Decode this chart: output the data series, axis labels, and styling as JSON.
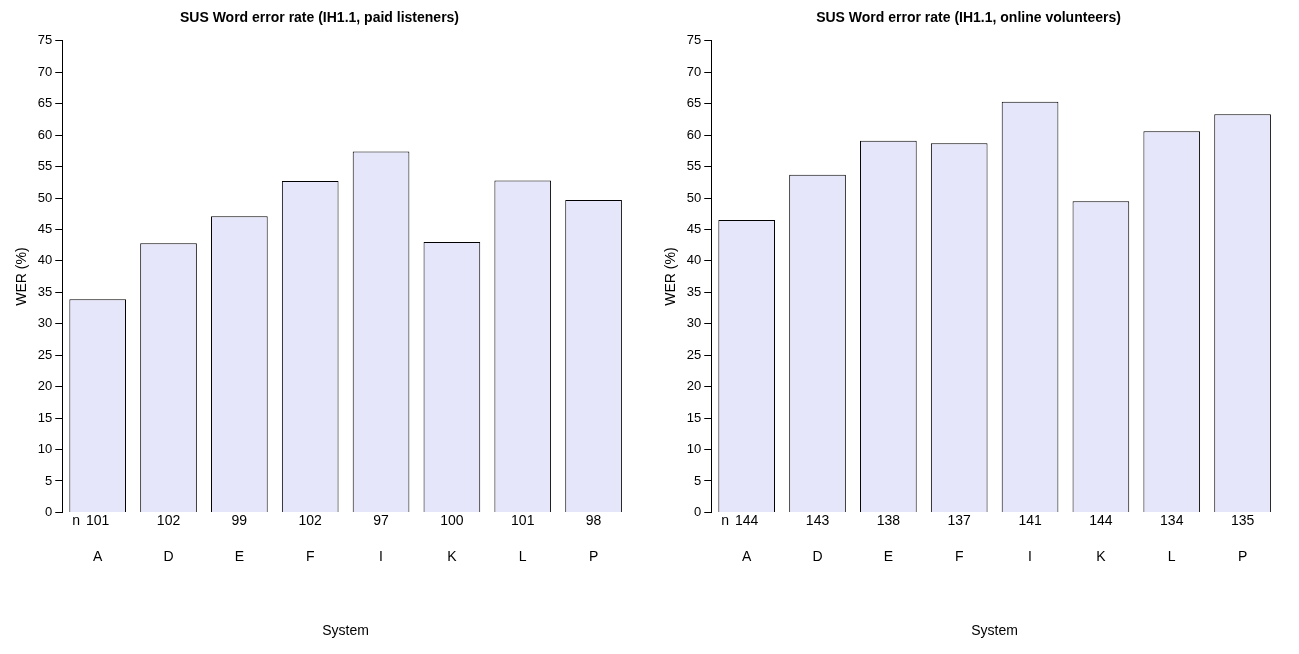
{
  "chart_data": [
    {
      "type": "bar",
      "title": "SUS Word error rate (IH1.1, paid listeners)",
      "xlabel": "System",
      "ylabel": "WER (%)",
      "categories": [
        "A",
        "D",
        "E",
        "F",
        "I",
        "K",
        "L",
        "P"
      ],
      "values": [
        33.9,
        42.8,
        47.1,
        52.7,
        57.4,
        43.0,
        52.8,
        49.7
      ],
      "color": "#e6e6fa",
      "ylim": [
        0,
        75
      ],
      "yticks": [
        0,
        5,
        10,
        15,
        20,
        25,
        30,
        35,
        40,
        45,
        50,
        55,
        60,
        65,
        70,
        75
      ],
      "grid": false,
      "legend": false,
      "annotations": [
        "n",
        {
          "text": "101",
          "x": "A",
          "y": 0
        },
        {
          "text": "102",
          "x": "D",
          "y": 0
        },
        {
          "text": "99",
          "x": "E",
          "y": 0
        },
        {
          "text": "102",
          "x": "F",
          "y": 0
        },
        {
          "text": "97",
          "x": "I",
          "y": 0
        },
        {
          "text": "100",
          "x": "K",
          "y": 0
        },
        {
          "text": "101",
          "x": "L",
          "y": 0
        },
        {
          "text": "98",
          "x": "P",
          "y": 0
        }
      ]
    },
    {
      "type": "bar",
      "title": "SUS Word error rate (IH1.1, online volunteers)",
      "xlabel": "System",
      "ylabel": "WER (%)",
      "categories": [
        "A",
        "D",
        "E",
        "F",
        "I",
        "K",
        "L",
        "P"
      ],
      "values": [
        46.5,
        53.7,
        59.1,
        58.7,
        65.3,
        49.5,
        60.6,
        63.3
      ],
      "color": "#e6e6fa",
      "ylim": [
        0,
        75
      ],
      "yticks": [
        0,
        5,
        10,
        15,
        20,
        25,
        30,
        35,
        40,
        45,
        50,
        55,
        60,
        65,
        70,
        75
      ],
      "grid": false,
      "legend": false,
      "annotations": [
        "n",
        {
          "text": "144",
          "x": "A",
          "y": 0
        },
        {
          "text": "143",
          "x": "D",
          "y": 0
        },
        {
          "text": "138",
          "x": "E",
          "y": 0
        },
        {
          "text": "137",
          "x": "F",
          "y": 0
        },
        {
          "text": "141",
          "x": "I",
          "y": 0
        },
        {
          "text": "144",
          "x": "K",
          "y": 0
        },
        {
          "text": "134",
          "x": "L",
          "y": 0
        },
        {
          "text": "135",
          "x": "P",
          "y": 0
        }
      ]
    }
  ]
}
